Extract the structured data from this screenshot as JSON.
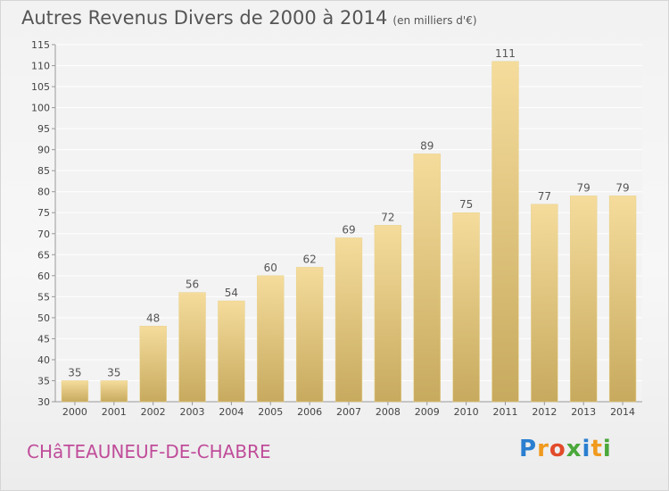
{
  "title": "Autres Revenus Divers de 2000 à 2014",
  "title_unit": "(en milliers d'€)",
  "town": "CHâTEAUNEUF-DE-CHABRE",
  "logo": {
    "text": "Proxiti",
    "letters": [
      {
        "ch": "P",
        "color": "#2a7fd0"
      },
      {
        "ch": "r",
        "color": "#f09a1e"
      },
      {
        "ch": "o",
        "color": "#e24b2a"
      },
      {
        "ch": "x",
        "color": "#4aa83a"
      },
      {
        "ch": "i",
        "color": "#2a7fd0"
      },
      {
        "ch": "t",
        "color": "#f09a1e"
      },
      {
        "ch": "i",
        "color": "#4aa83a"
      }
    ]
  },
  "colors": {
    "bar_light": "#f5dc9c",
    "bar_dark": "#c7aa5e",
    "title": "#555555",
    "town": "#c04d9a"
  },
  "chart_data": {
    "type": "bar",
    "categories": [
      "2000",
      "2001",
      "2002",
      "2003",
      "2004",
      "2005",
      "2006",
      "2007",
      "2008",
      "2009",
      "2010",
      "2011",
      "2012",
      "2013",
      "2014"
    ],
    "values": [
      35,
      35,
      48,
      56,
      54,
      60,
      62,
      69,
      72,
      89,
      75,
      111,
      77,
      79,
      79
    ],
    "data_labels": [
      "35",
      "35",
      "48",
      "56",
      "54",
      "60",
      "62",
      "69",
      "72",
      "89",
      "75",
      "111",
      "77",
      "79",
      "79"
    ],
    "ylim": [
      30,
      115
    ],
    "yticks": [
      30,
      35,
      40,
      45,
      50,
      55,
      60,
      65,
      70,
      75,
      80,
      85,
      90,
      95,
      100,
      105,
      110,
      115
    ],
    "grid": true,
    "xlabel": "",
    "ylabel": ""
  }
}
